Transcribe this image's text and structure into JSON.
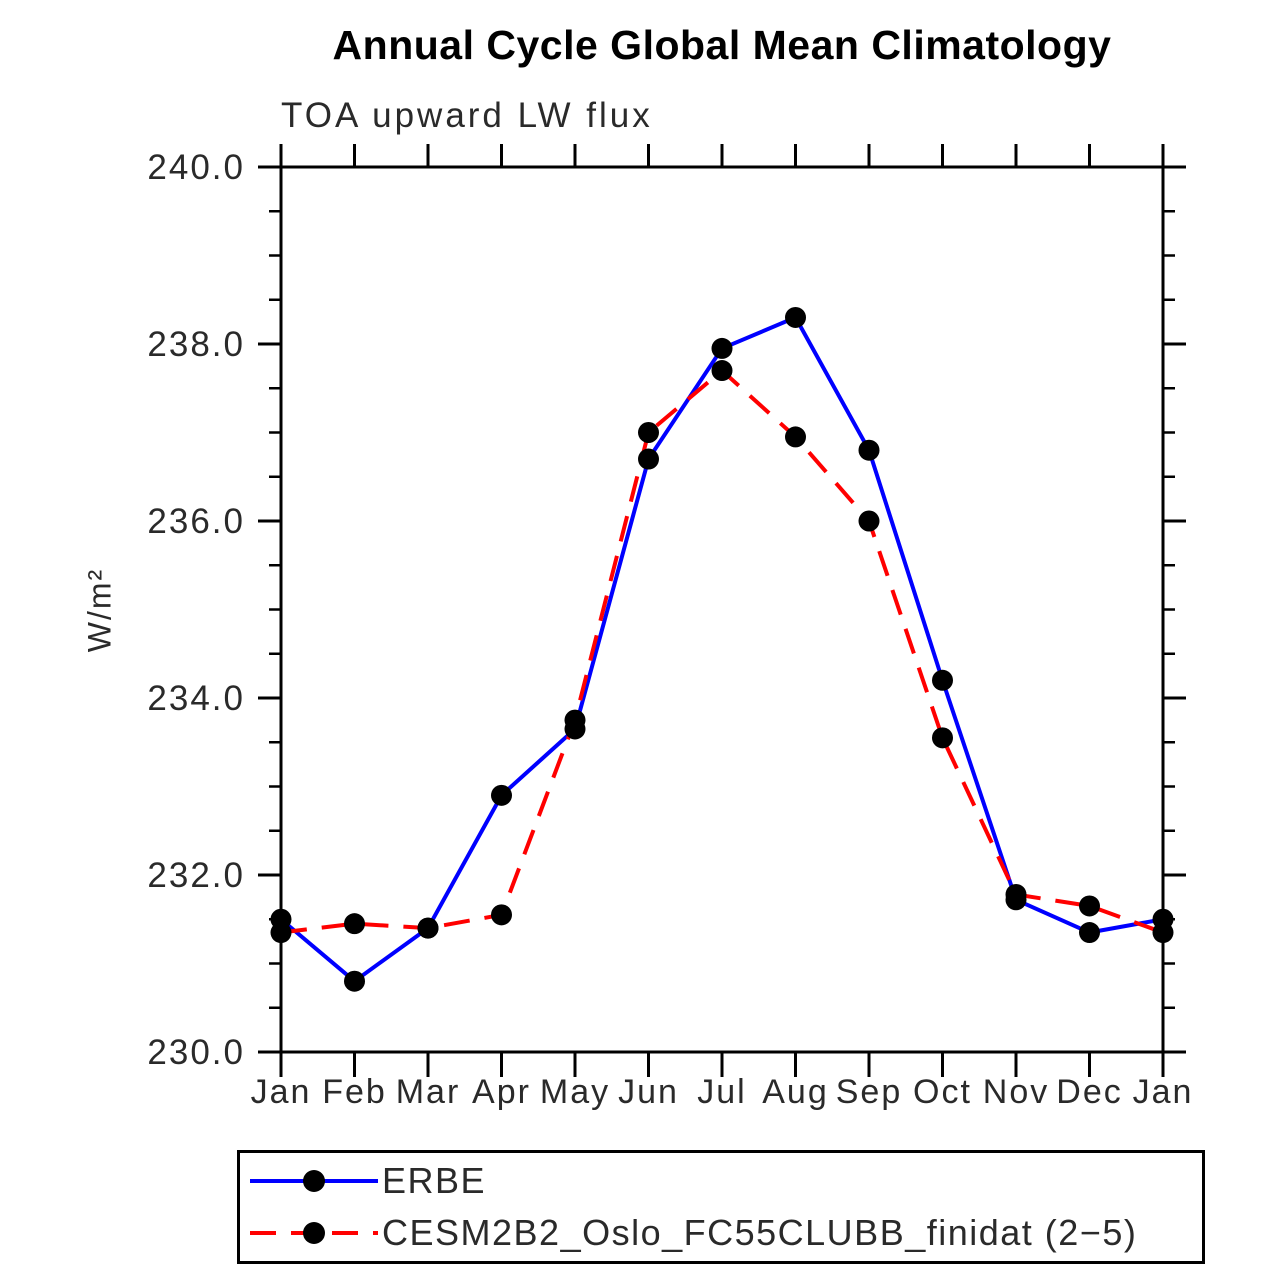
{
  "header": {
    "title": "Annual Cycle Global Mean Climatology",
    "subtitle": "TOA upward LW flux"
  },
  "chart_data": {
    "type": "line",
    "title": "Annual Cycle Global Mean Climatology",
    "subtitle": "TOA upward LW flux",
    "xlabel": "",
    "ylabel": "W/m²",
    "categories": [
      "Jan",
      "Feb",
      "Mar",
      "Apr",
      "May",
      "Jun",
      "Jul",
      "Aug",
      "Sep",
      "Oct",
      "Nov",
      "Dec",
      "Jan"
    ],
    "series": [
      {
        "name": "ERBE",
        "color": "#0000ff",
        "line_style": "solid",
        "marker": "filled-circle",
        "marker_color": "#000000",
        "values": [
          231.5,
          230.8,
          231.4,
          232.9,
          233.65,
          236.7,
          237.95,
          238.3,
          236.8,
          234.2,
          231.72,
          231.35,
          231.5
        ]
      },
      {
        "name": "CESM2B2_Oslo_FC55CLUBB_finidat (2−5)",
        "color": "#ff0000",
        "line_style": "dashed",
        "marker": "filled-circle",
        "marker_color": "#000000",
        "values": [
          231.35,
          231.45,
          231.4,
          231.55,
          233.75,
          237.0,
          237.7,
          236.95,
          236.0,
          233.55,
          231.78,
          231.65,
          231.35
        ]
      }
    ],
    "ylim": [
      230.0,
      240.0
    ],
    "y_major_ticks": [
      230,
      232,
      234,
      236,
      238,
      240
    ],
    "y_tick_labels": [
      "230.0",
      "232.0",
      "234.0",
      "236.0",
      "238.0",
      "240.0"
    ],
    "y_minor_step": 0.5,
    "grid": false,
    "legend_position": "bottom",
    "axis_color": "#000000",
    "tick_label_color": "#2a2a2a"
  }
}
